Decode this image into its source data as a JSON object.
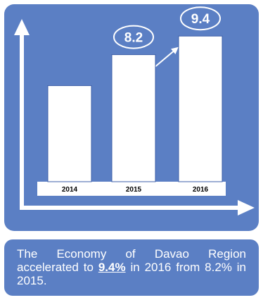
{
  "chart_data": {
    "type": "bar",
    "categories": [
      "2014",
      "2015",
      "2016"
    ],
    "values": [
      6.2,
      8.2,
      9.4
    ],
    "data_labels": [
      "",
      "8.2",
      "9.4"
    ],
    "ylim": [
      0,
      10
    ],
    "title": "",
    "xlabel": "",
    "ylabel": "",
    "grid": false
  },
  "caption": {
    "part1": "The Economy of Davao Region accelerated to ",
    "highlight": "9.4%",
    "part2": " in 2016 from 8.2% in 2015."
  },
  "colors": {
    "panel": "#5b7fc4",
    "bar": "#ffffff",
    "text": "#ffffff"
  }
}
